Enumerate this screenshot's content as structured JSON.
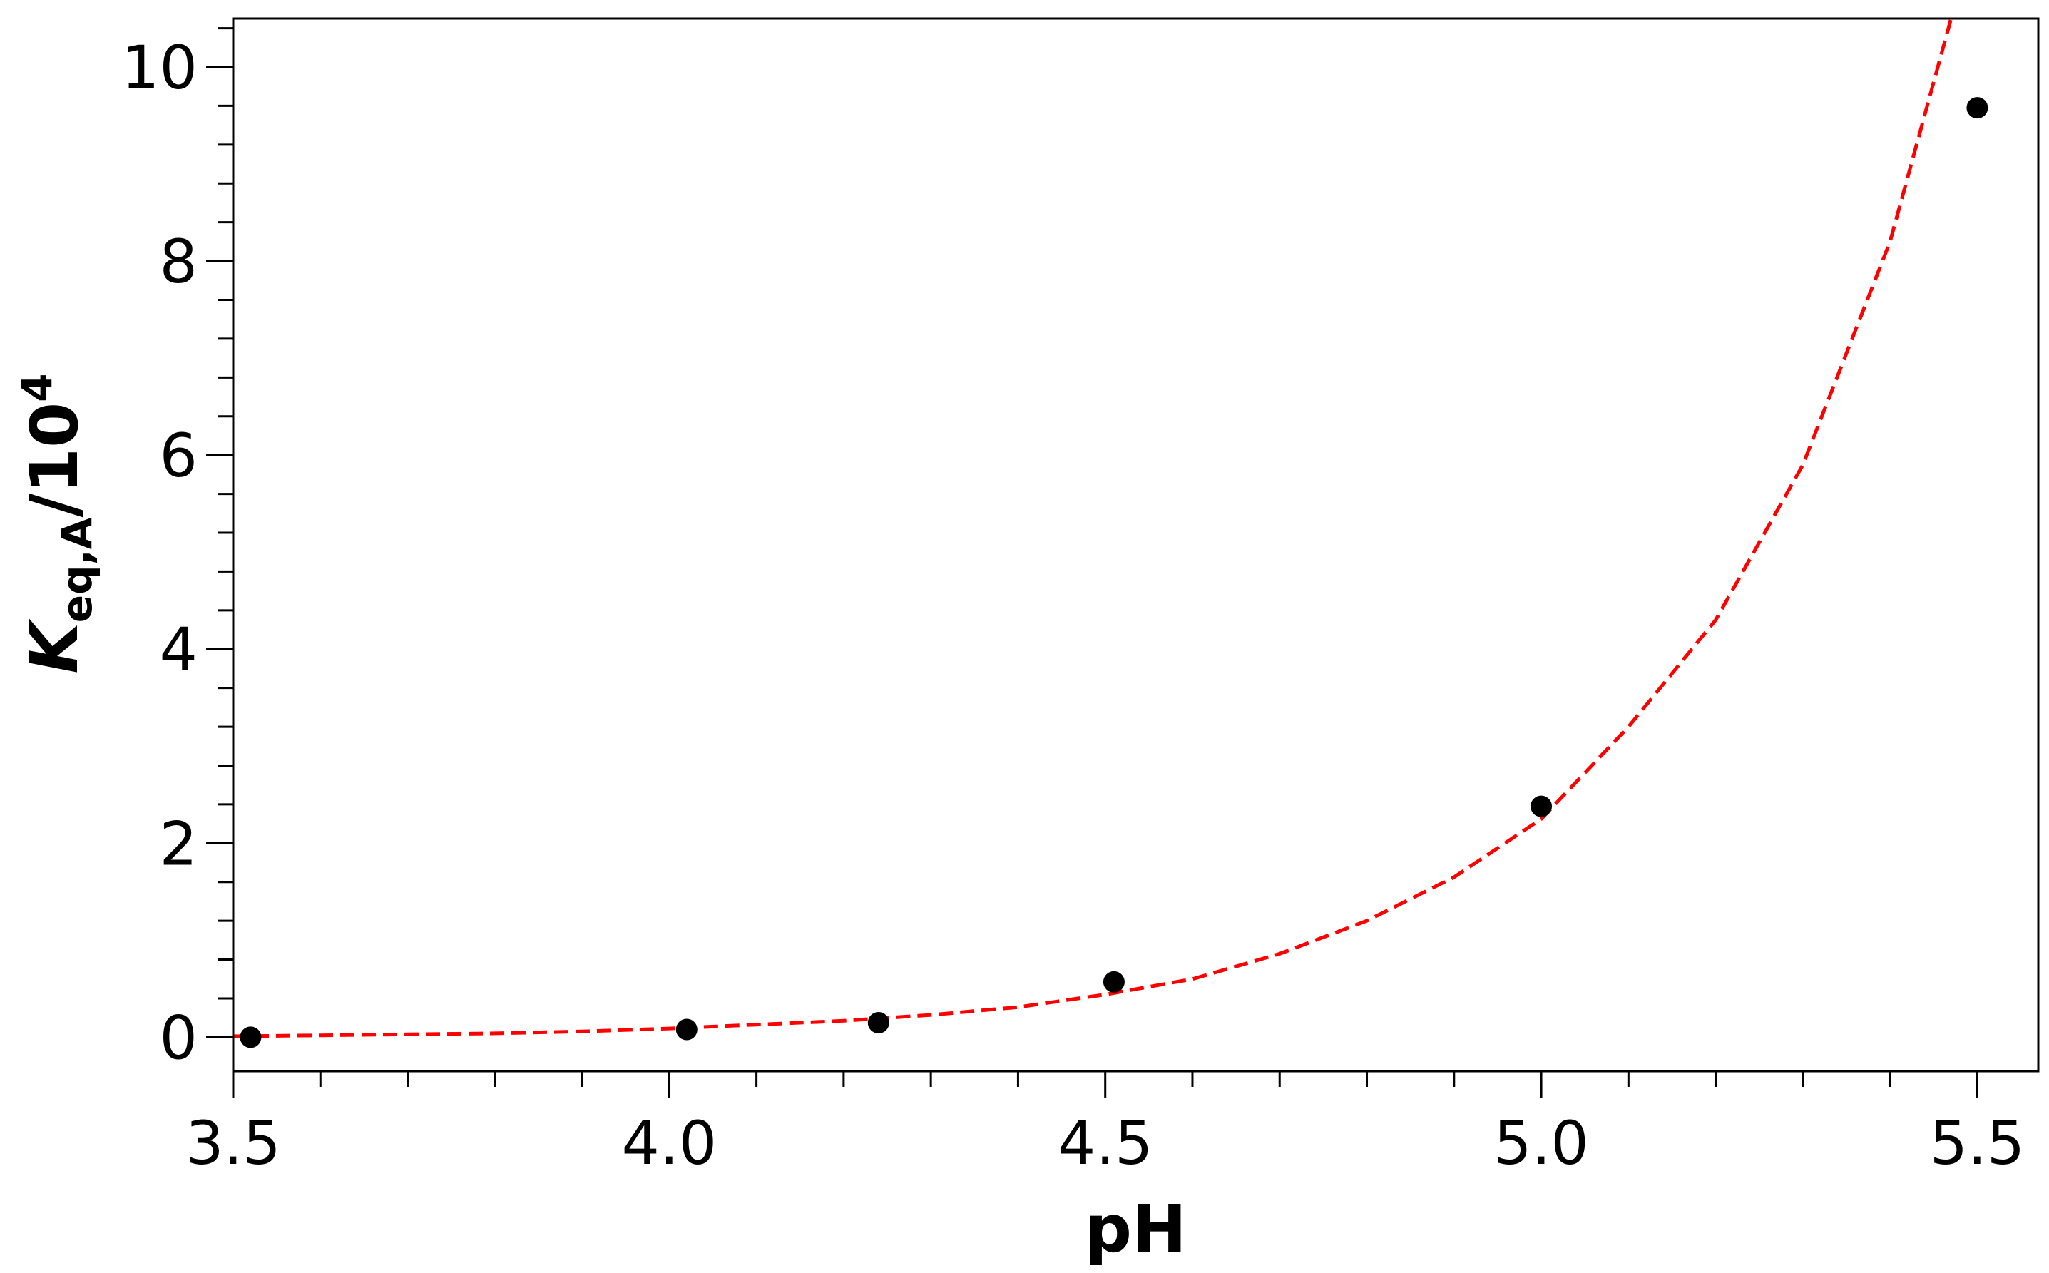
{
  "chart_data": {
    "type": "scatter",
    "title": "",
    "xlabel": "pH",
    "ylabel": {
      "symbol": "K",
      "subscript": "eq,A",
      "rest": "/10",
      "superscript": "4"
    },
    "xlim": [
      3.5,
      5.57
    ],
    "ylim": [
      -0.35,
      10.5
    ],
    "x_ticks": [
      3.5,
      4.0,
      4.5,
      5.0,
      5.5
    ],
    "x_tick_labels": [
      "3.5",
      "4.0",
      "4.5",
      "5.0",
      "5.5"
    ],
    "x_minor_step": 0.1,
    "y_ticks": [
      0,
      2,
      4,
      6,
      8,
      10
    ],
    "y_tick_labels": [
      "0",
      "2",
      "4",
      "6",
      "8",
      "10"
    ],
    "y_minor_step": 0.4,
    "grid": false,
    "legend": "none",
    "series": [
      {
        "kind": "points",
        "marker": "circle",
        "color": "#000000",
        "x": [
          3.52,
          4.02,
          4.24,
          4.51,
          5.0,
          5.5
        ],
        "y": [
          0.0,
          0.08,
          0.15,
          0.57,
          2.38,
          9.58
        ]
      },
      {
        "kind": "fit",
        "style": "dashed",
        "color": "#ff0000",
        "x": [
          3.5,
          3.6,
          3.7,
          3.8,
          3.9,
          4.0,
          4.1,
          4.2,
          4.3,
          4.4,
          4.5,
          4.6,
          4.7,
          4.8,
          4.9,
          5.0,
          5.1,
          5.2,
          5.3,
          5.4,
          5.47
        ],
        "y": [
          0.01,
          0.02,
          0.03,
          0.04,
          0.06,
          0.09,
          0.13,
          0.17,
          0.23,
          0.31,
          0.44,
          0.6,
          0.86,
          1.2,
          1.65,
          2.25,
          3.2,
          4.3,
          5.9,
          8.2,
          10.5
        ]
      }
    ]
  }
}
